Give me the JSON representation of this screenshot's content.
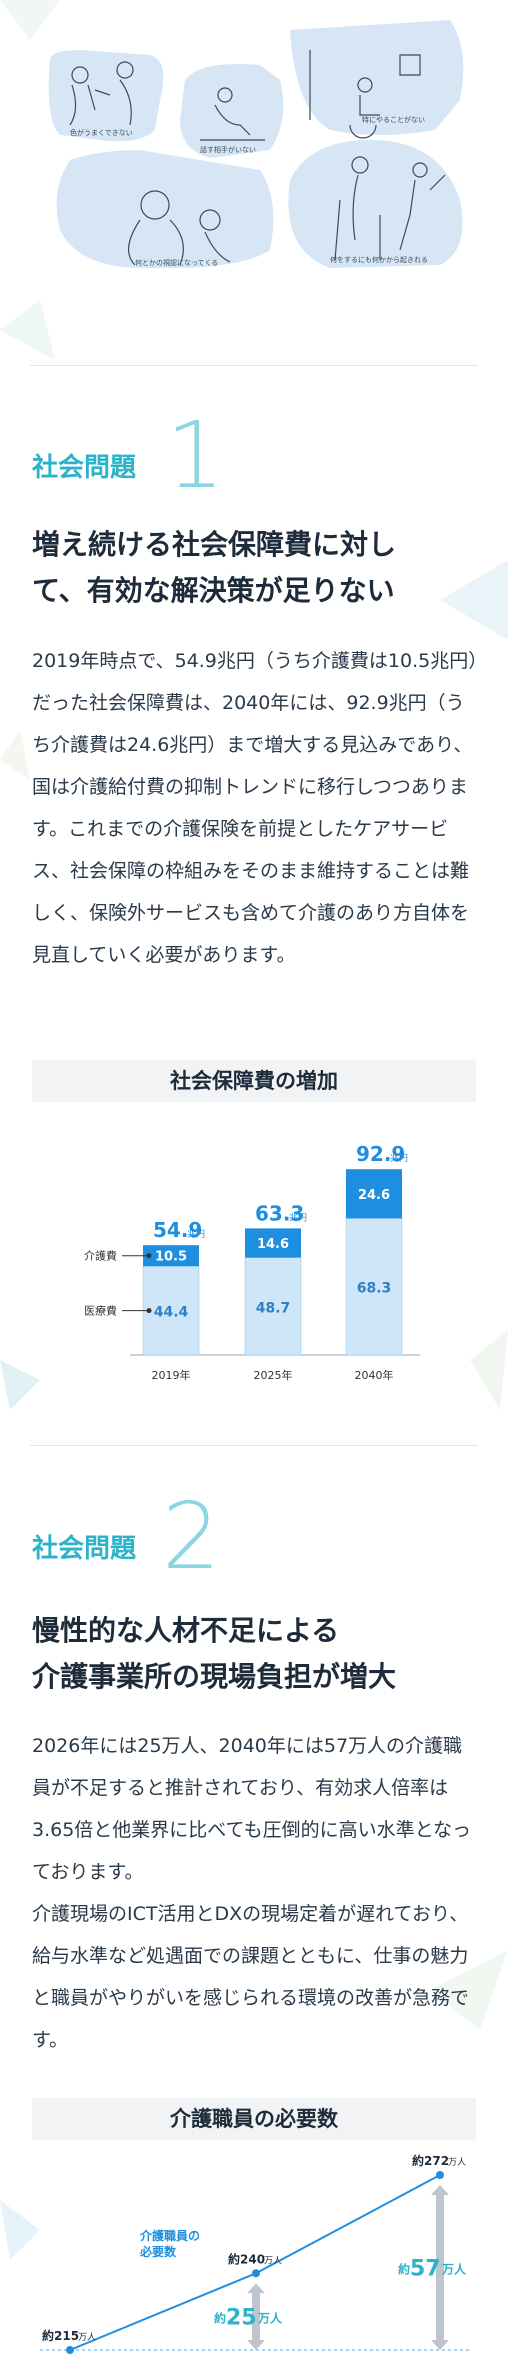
{
  "illustration": {
    "captions": [
      "色がうまくできない",
      "話す相手がいない",
      "特にやることがない",
      "何とかの視認になってくる",
      "何をするにも何かから起きれる"
    ]
  },
  "section1": {
    "label": "社会問題",
    "number": "1",
    "title_lines": [
      "増え続ける社会保障費に対し",
      "て、有効な解決策が足りない"
    ],
    "body": "2019年時点で、54.9兆円（うち介護費は10.5兆円）だった社会保障費は、2040年には、92.9兆円（うち介護費は24.6兆円）まで増大する見込みであり、国は介護給付費の抑制トレンドに移行しつつあります。これまでの介護保険を前提としたケアサービス、社会保障の枠組みをそのまま維持することは難しく、保険外サービスも含めて介護のあり方自体を見直していく必要があります。",
    "chart_title": "社会保障費の増加"
  },
  "section2": {
    "label": "社会問題",
    "number": "2",
    "title_lines": [
      "慢性的な人材不足による",
      "介護事業所の現場負担が増大"
    ],
    "body_p1": "2026年には25万人、2040年には57万人の介護職員が不足すると推計されており、有効求人倍率は3.65倍と他業界に比べても圧倒的に高い水準となっております。",
    "body_p2": "介護現場のICT活用とDXの現場定着が遅れており、給与水準など処遇面での課題とともに、仕事の魅力と職員がやりがいを感じられる環境の改善が急務です。",
    "chart_title": "介護職員の必要数"
  },
  "chart_data": [
    {
      "type": "bar",
      "title": "社会保障費の増加",
      "categories": [
        "2019年",
        "2025年",
        "2040年"
      ],
      "series": [
        {
          "name": "医療費",
          "values": [
            44.4,
            48.7,
            68.3
          ]
        },
        {
          "name": "介護費",
          "values": [
            10.5,
            14.6,
            24.6
          ]
        }
      ],
      "totals": [
        54.9,
        63.3,
        92.9
      ],
      "total_unit": "兆円",
      "colors": {
        "lower": "#cfe6f8",
        "upper": "#1e8fe0",
        "total": "#1e8fe0"
      },
      "legend_labels": [
        "介護費",
        "医療費"
      ]
    },
    {
      "type": "line",
      "title": "介護職員の必要数",
      "points": [
        {
          "label": "約215",
          "unit": "万人",
          "value": 215
        },
        {
          "label": "約240",
          "unit": "万人",
          "value": 240
        },
        {
          "label": "約272",
          "unit": "万人",
          "value": 272
        }
      ],
      "annotation": "介護職員の必要数",
      "gaps": [
        {
          "prefix": "約",
          "value": "25",
          "unit": "万人"
        },
        {
          "prefix": "約",
          "value": "57",
          "unit": "万人"
        }
      ],
      "colors": {
        "line": "#1e8fe0",
        "gap": "#bfc5cc",
        "gap_text": "#2bb3c9"
      }
    }
  ]
}
